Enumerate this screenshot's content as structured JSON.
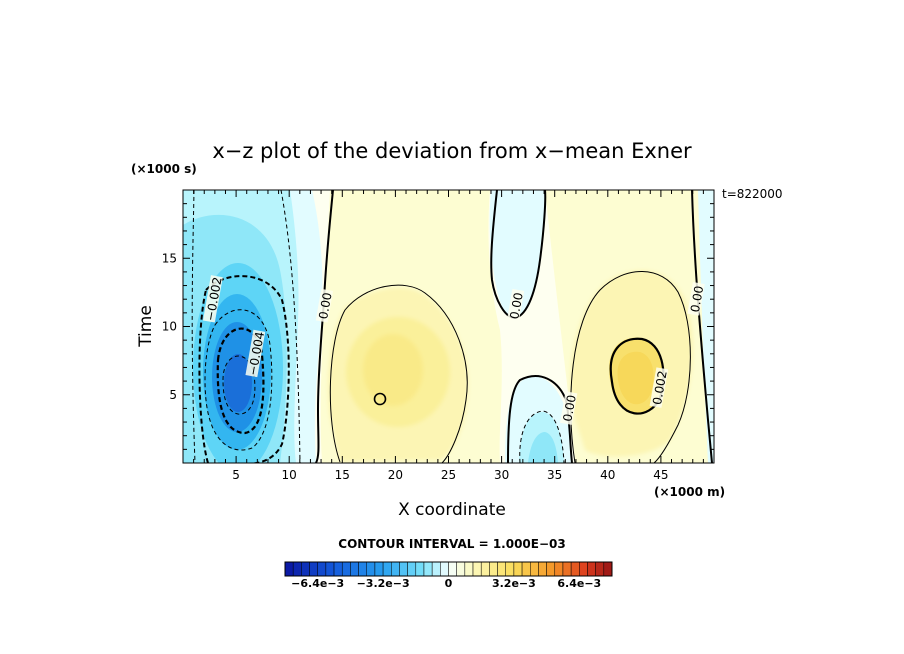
{
  "chart_data": {
    "type": "heatmap",
    "title": "x−z plot of the deviation from x−mean Exner",
    "xlabel": "X coordinate",
    "ylabel": "Time",
    "x_unit_label": "(×1000 m)",
    "y_unit_label": "(×1000 s)",
    "timestamp": "t=822000",
    "xlim": [
      0,
      50
    ],
    "ylim": [
      0,
      20
    ],
    "x_ticks": [
      5,
      10,
      15,
      20,
      25,
      30,
      35,
      40,
      45
    ],
    "y_ticks": [
      5,
      10,
      15
    ],
    "contour_interval_text": "CONTOUR INTERVAL = 1.000E−03",
    "contour_labels": [
      {
        "text": "−0.002",
        "x": 3,
        "y": 12
      },
      {
        "text": "−0.004",
        "x": 7,
        "y": 8
      },
      {
        "text": "0.00",
        "x": 13.5,
        "y": 11.5
      },
      {
        "text": "0.00",
        "x": 31.5,
        "y": 11.5
      },
      {
        "text": "0.00",
        "x": 36.5,
        "y": 4
      },
      {
        "text": "0.002",
        "x": 45,
        "y": 5.5
      },
      {
        "text": "0.00",
        "x": 48.5,
        "y": 12
      }
    ],
    "features": [
      {
        "x": 5.5,
        "y": 6,
        "value": -0.0055
      },
      {
        "x": 20,
        "y": 6.5,
        "value": 0.0014
      },
      {
        "x": 42,
        "y": 6,
        "value": 0.0024
      },
      {
        "x": 33.5,
        "y": 2.5,
        "value": -0.0014
      },
      {
        "x": 33,
        "y": 17,
        "value": -0.0004
      }
    ],
    "colorbar": {
      "min": -0.008,
      "max": 0.008,
      "step": 0.0004,
      "tick_labels": [
        "−6.4e−3",
        "−3.2e−3",
        "0",
        "3.2e−3",
        "6.4e−3"
      ],
      "tick_values": [
        -0.0064,
        -0.0032,
        0,
        0.0032,
        0.0064
      ]
    }
  }
}
